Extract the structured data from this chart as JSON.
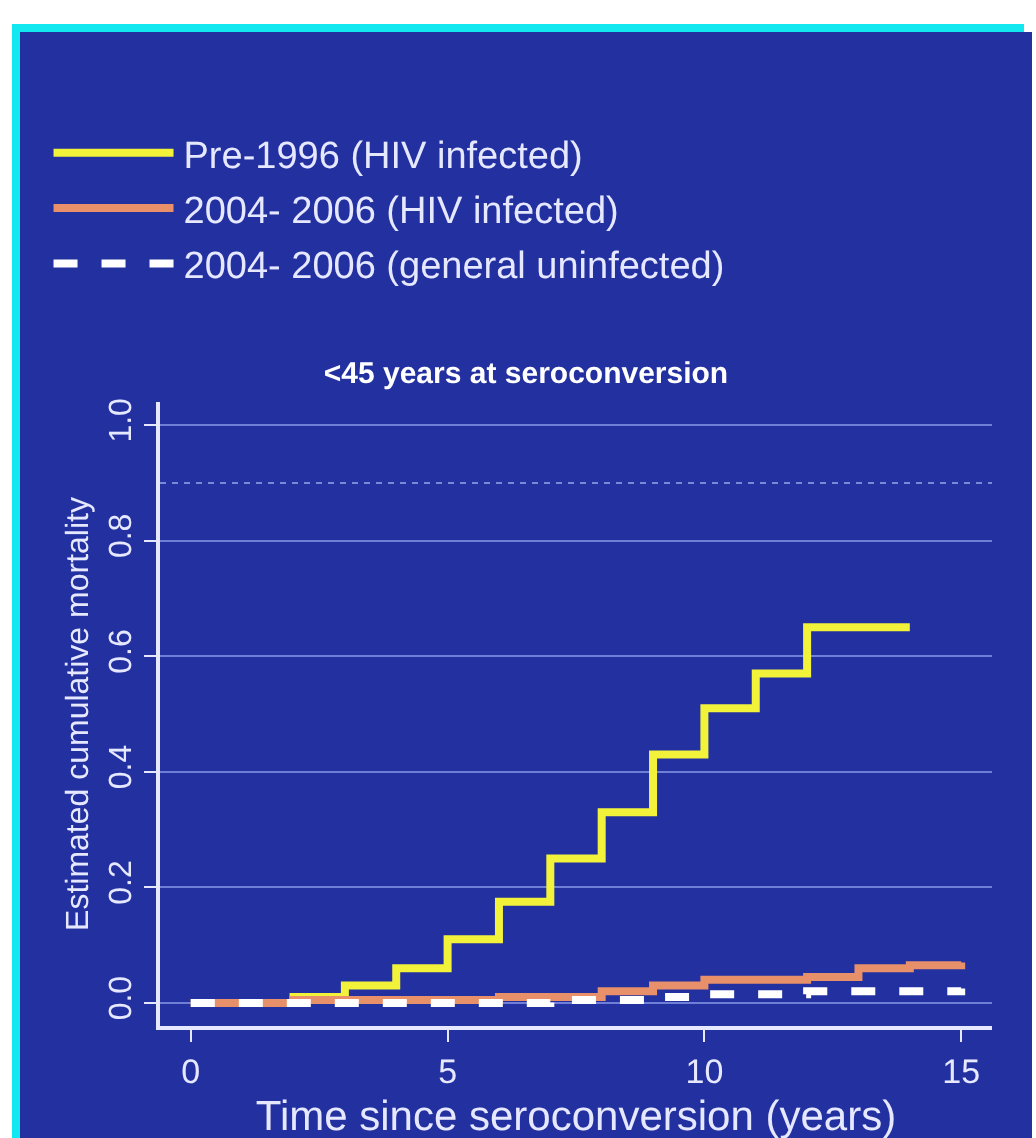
{
  "chart_data": {
    "type": "step",
    "title": "<45 years at seroconversion",
    "xlabel": "Time since seroconversion (years)",
    "ylabel": "Estimated cumulative mortality",
    "xlim": [
      -0.6,
      15.6
    ],
    "ylim": [
      -0.04,
      1.04
    ],
    "xticks": [
      0,
      5,
      10,
      15
    ],
    "yticks": [
      {
        "value": 0,
        "label": "0.0"
      },
      {
        "value": 0.2,
        "label": "0.2"
      },
      {
        "value": 0.4,
        "label": "0.4"
      },
      {
        "value": 0.6,
        "label": "0.6"
      },
      {
        "value": 0.8,
        "label": "0.8"
      },
      {
        "value": 1,
        "label": "1.0"
      }
    ],
    "grid": "y",
    "legend": "top",
    "marker": "none",
    "ref_lines": [
      {
        "axis": "y",
        "value": 0.9,
        "label": null,
        "color": "#7a88d8",
        "line_style": "dotted"
      }
    ],
    "series": [
      {
        "name": "Pre-1996 (HIV infected)",
        "color": "#f2f23a",
        "line_style": "solid",
        "x": [
          0,
          2,
          3,
          4,
          5,
          6,
          7,
          8,
          9,
          10,
          11,
          12,
          14
        ],
        "values": [
          0,
          0.01,
          0.03,
          0.06,
          0.11,
          0.175,
          0.25,
          0.33,
          0.43,
          0.51,
          0.57,
          0.65,
          0.65
        ]
      },
      {
        "name": "2004- 2006 (HIV infected)",
        "color": "#e8906a",
        "line_style": "solid",
        "x": [
          0,
          2,
          6,
          8,
          9,
          10,
          12,
          13,
          14,
          15
        ],
        "values": [
          0,
          0.005,
          0.01,
          0.02,
          0.03,
          0.04,
          0.045,
          0.06,
          0.065,
          0.07
        ]
      },
      {
        "name": "2004- 2006 (general uninfected)",
        "color": "#ffffff",
        "line_style": "dashed",
        "x": [
          0,
          7,
          9,
          10,
          12,
          15
        ],
        "values": [
          0,
          0.005,
          0.01,
          0.015,
          0.02,
          0.025
        ]
      }
    ]
  }
}
